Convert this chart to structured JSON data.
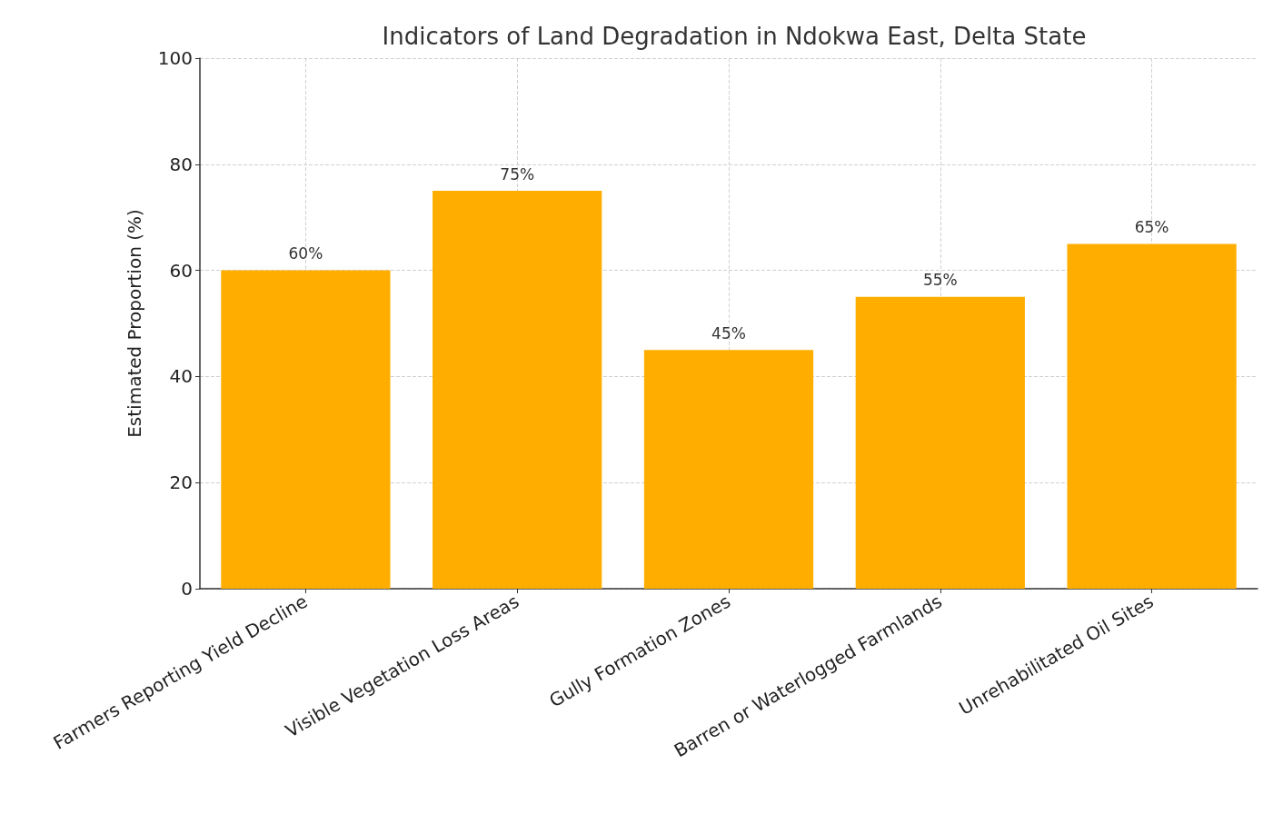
{
  "chart_data": {
    "type": "bar",
    "title": "Indicators of Land Degradation in Ndokwa East, Delta State",
    "ylabel": "Estimated Proportion (%)",
    "categories": [
      "Farmers Reporting Yield Decline",
      "Visible Vegetation Loss Areas",
      "Gully Formation Zones",
      "Barren or Waterlogged Farmlands",
      "Unrehabilitated Oil Sites"
    ],
    "values": [
      60,
      75,
      45,
      55,
      65
    ],
    "value_labels": [
      "60%",
      "75%",
      "45%",
      "55%",
      "65%"
    ],
    "color": "#ffae00",
    "ylim": [
      0,
      100
    ],
    "yticks": [
      0,
      20,
      40,
      60,
      80,
      100
    ],
    "grid": true
  }
}
